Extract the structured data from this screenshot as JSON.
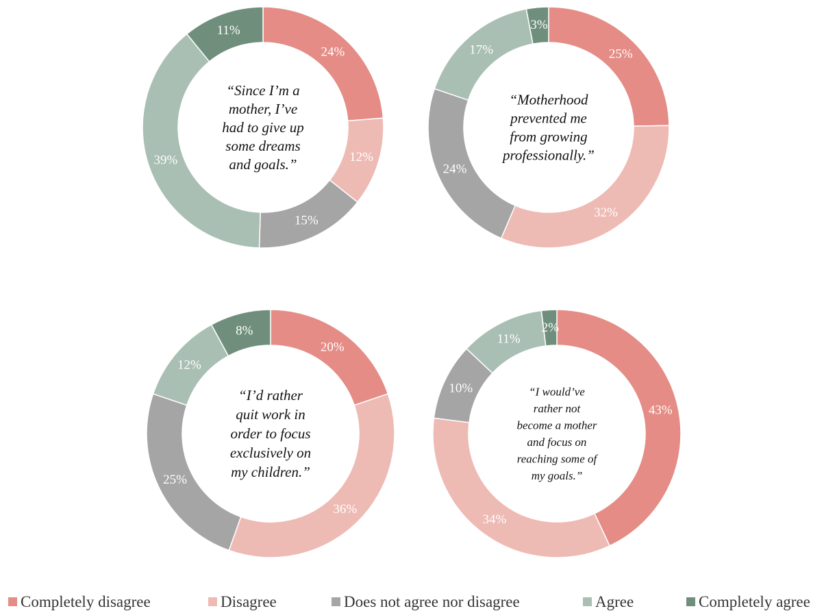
{
  "colors": {
    "Completely disagree": "#e48c85",
    "Disagree": "#eebab4",
    "Does not agree nor disagree": "#a5a5a5",
    "Agree": "#a9bfb3",
    "Completely agree": "#6f8f7c"
  },
  "legend": {
    "items": [
      "Completely disagree",
      "Disagree",
      "Does not agree nor disagree",
      "Agree",
      "Completely agree"
    ],
    "position": "bottom"
  },
  "chart_data": [
    {
      "type": "pie",
      "style": "donut",
      "title": "",
      "center_text": [
        "“Since I’m a",
        "mother, I’ve",
        "had to give up",
        "some dreams",
        "and goals.”"
      ],
      "categories": [
        "Completely disagree",
        "Disagree",
        "Does not agree nor disagree",
        "Agree",
        "Completely agree"
      ],
      "values": [
        24,
        12,
        15,
        39,
        11
      ],
      "labels": [
        "24%",
        "12%",
        "15%",
        "39%",
        "11%"
      ]
    },
    {
      "type": "pie",
      "style": "donut",
      "title": "",
      "center_text": [
        "“Motherhood",
        "prevented me",
        "from growing",
        "professionally.”"
      ],
      "categories": [
        "Completely disagree",
        "Disagree",
        "Does not agree nor disagree",
        "Agree",
        "Completely agree"
      ],
      "values": [
        25,
        32,
        24,
        17,
        3
      ],
      "labels": [
        "25%",
        "32%",
        "24%",
        "17%",
        "3%"
      ]
    },
    {
      "type": "pie",
      "style": "donut",
      "title": "",
      "center_text": [
        "“I’d rather",
        "quit work in",
        "order to focus",
        "exclusively on",
        "my children.”"
      ],
      "categories": [
        "Completely disagree",
        "Disagree",
        "Does not agree nor disagree",
        "Agree",
        "Completely agree"
      ],
      "values": [
        20,
        36,
        25,
        12,
        8
      ],
      "labels": [
        "20%",
        "36%",
        "25%",
        "12%",
        "8%"
      ]
    },
    {
      "type": "pie",
      "style": "donut",
      "title": "",
      "center_text": [
        "“I would’ve",
        "rather not",
        "become a mother",
        "and focus on",
        "reaching some of",
        "my goals.”"
      ],
      "categories": [
        "Completely disagree",
        "Disagree",
        "Does not agree nor disagree",
        "Agree",
        "Completely agree"
      ],
      "values": [
        43,
        34,
        10,
        11,
        2
      ],
      "labels": [
        "43%",
        "34%",
        "10%",
        "11%",
        "2%"
      ]
    }
  ]
}
